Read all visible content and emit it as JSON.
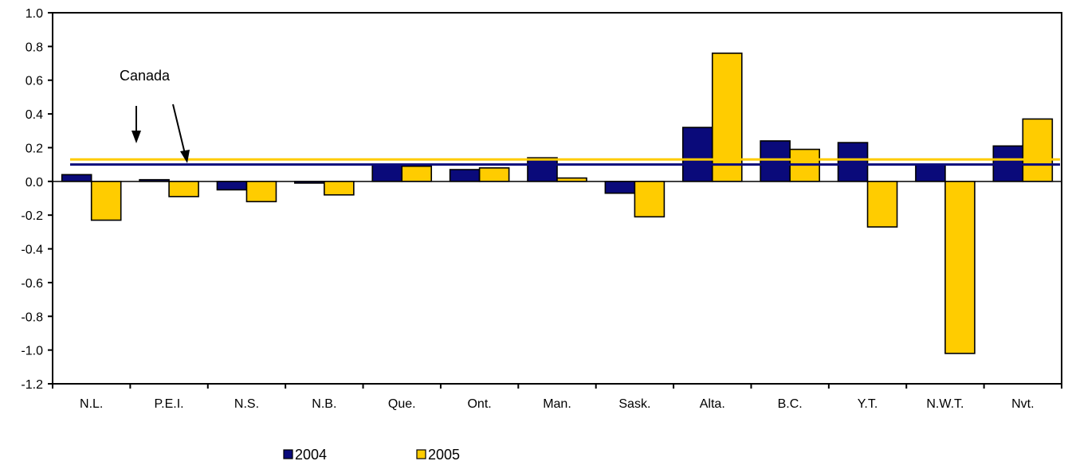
{
  "chart_data": {
    "type": "bar",
    "title": "",
    "xlabel": "",
    "ylabel": "",
    "categories": [
      "N.L.",
      "P.E.I.",
      "N.S.",
      "N.B.",
      "Que.",
      "Ont.",
      "Man.",
      "Sask.",
      "Alta.",
      "B.C.",
      "Y.T.",
      "N.W.T.",
      "Nvt."
    ],
    "series": [
      {
        "name": "2004",
        "color": "#0a0a7a",
        "values": [
          0.04,
          0.01,
          -0.05,
          -0.01,
          0.1,
          0.07,
          0.14,
          -0.07,
          0.32,
          0.24,
          0.23,
          0.1,
          0.21
        ]
      },
      {
        "name": "2005",
        "color": "#ffcc00",
        "values": [
          -0.23,
          -0.09,
          -0.12,
          -0.08,
          0.09,
          0.08,
          0.02,
          -0.21,
          0.76,
          0.19,
          -0.27,
          -1.02,
          0.37
        ]
      }
    ],
    "ylim": [
      -1.2,
      1.0
    ],
    "yticks": [
      "1.0",
      "0.8",
      "0.6",
      "0.4",
      "0.2",
      "0.0",
      "-0.2",
      "-0.4",
      "-0.6",
      "-0.8",
      "-1.0",
      "-1.2"
    ],
    "ytick_values": [
      1.0,
      0.8,
      0.6,
      0.4,
      0.2,
      0.0,
      -0.2,
      -0.4,
      -0.6,
      -0.8,
      -1.0,
      -1.2
    ],
    "reference_lines": [
      {
        "series": "2005",
        "value": 0.13,
        "color": "#ffcc00"
      },
      {
        "series": "2004",
        "value": 0.1,
        "color": "#0a0a7a"
      }
    ],
    "annotation": {
      "text": "Canada"
    },
    "legend": {
      "placement": "bottom",
      "items": [
        "2004",
        "2005"
      ]
    },
    "grid": false
  }
}
